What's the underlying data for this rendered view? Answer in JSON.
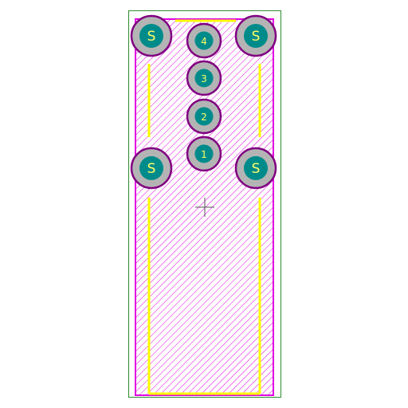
{
  "colors": {
    "background": "#ffffff",
    "board_outline": "#2e8b2e",
    "courtyard": "#e000e0",
    "hatch": "#e000e0",
    "silkscreen": "#ffff00",
    "pad_ring": "#800080",
    "pad_copper": "#b4b4b4",
    "pad_drill": "#008b8b",
    "pad_text": "#ffff66",
    "origin_marker": "#555555"
  },
  "pads": [
    {
      "id": "shield-top-left",
      "label": "S",
      "kind": "shield"
    },
    {
      "id": "shield-top-right",
      "label": "S",
      "kind": "shield"
    },
    {
      "id": "shield-mid-left",
      "label": "S",
      "kind": "shield"
    },
    {
      "id": "shield-mid-right",
      "label": "S",
      "kind": "shield"
    },
    {
      "id": "pin-4",
      "label": "4",
      "kind": "pin"
    },
    {
      "id": "pin-3",
      "label": "3",
      "kind": "pin"
    },
    {
      "id": "pin-2",
      "label": "2",
      "kind": "pin"
    },
    {
      "id": "pin-1",
      "label": "1",
      "kind": "pin"
    }
  ],
  "icons": {
    "origin": "crosshair-icon"
  }
}
